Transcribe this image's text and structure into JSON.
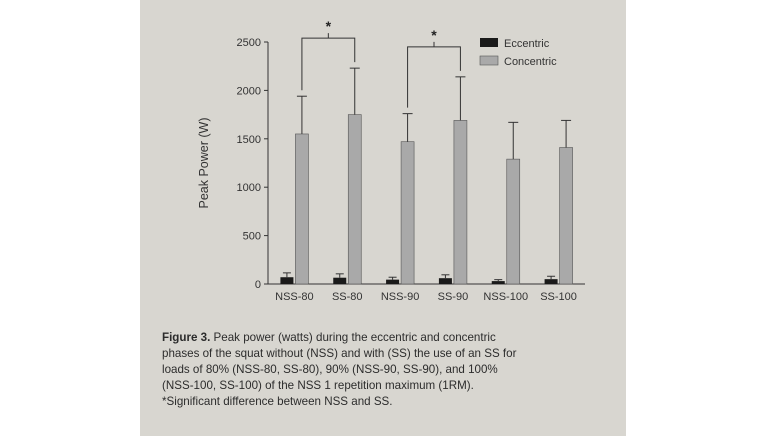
{
  "chart_data": {
    "type": "bar",
    "ylabel": "Peak Power (W)",
    "xlabel": "",
    "categories": [
      "NSS-80",
      "SS-80",
      "NSS-90",
      "SS-90",
      "NSS-100",
      "SS-100"
    ],
    "yticks": [
      "0",
      "500",
      "1000",
      "1500",
      "2000",
      "2500"
    ],
    "ylim": [
      0,
      2500
    ],
    "legend_position": "top-right",
    "grid": false,
    "series": [
      {
        "name": "Eccentric",
        "color": "#1a1a1a",
        "values": [
          70,
          65,
          45,
          60,
          30,
          50
        ],
        "errors": [
          45,
          40,
          25,
          35,
          15,
          30
        ]
      },
      {
        "name": "Concentric",
        "color": "#a9a9a9",
        "values": [
          1550,
          1750,
          1470,
          1690,
          1290,
          1410
        ],
        "errors": [
          390,
          480,
          290,
          450,
          380,
          280
        ]
      }
    ],
    "annotations": [
      {
        "text": "*",
        "from": "NSS-80",
        "to": "SS-80"
      },
      {
        "text": "*",
        "from": "NSS-90",
        "to": "SS-90"
      }
    ]
  },
  "caption": {
    "label": "Figure 3.",
    "lines": [
      " Peak power (watts) during the eccentric and concentric",
      "phases of the squat without (NSS) and with (SS) the use of an SS for",
      "loads of 80% (NSS-80, SS-80), 90% (NSS-90, SS-90), and 100%",
      "(NSS-100, SS-100) of the NSS 1 repetition maximum (1RM).",
      "*Significant difference between NSS and SS."
    ]
  }
}
